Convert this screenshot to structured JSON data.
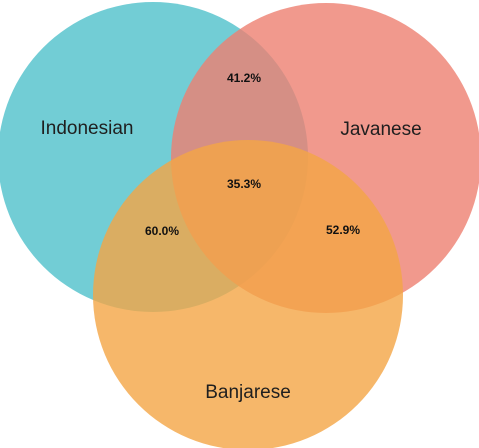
{
  "sets": [
    {
      "id": "indonesian",
      "label": "Indonesian",
      "color": "#4fc0cb"
    },
    {
      "id": "javanese",
      "label": "Javanese",
      "color": "#ee8070"
    },
    {
      "id": "banjarese",
      "label": "Banjarese",
      "color": "#f4a545"
    }
  ],
  "regions": {
    "indonesian_javanese": "41.2%",
    "all_three": "35.3%",
    "indonesian_banjarese": "60.0%",
    "javanese_banjarese": "52.9%"
  }
}
